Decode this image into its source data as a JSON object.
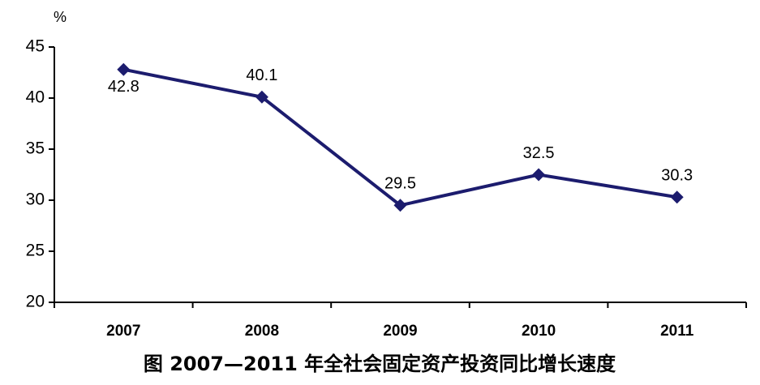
{
  "chart_data": {
    "type": "line",
    "caption": "图 2007—2011 年全社会固定资产投资同比增长速度",
    "y_unit": "%",
    "categories": [
      "2007",
      "2008",
      "2009",
      "2010",
      "2011"
    ],
    "series": [
      {
        "name": "同比增长速度",
        "color": "#1c1c6e",
        "values": [
          42.8,
          40.1,
          29.5,
          32.5,
          30.3
        ]
      }
    ],
    "ylim": [
      20,
      45
    ],
    "yticks": [
      20,
      25,
      30,
      35,
      40,
      45
    ]
  }
}
